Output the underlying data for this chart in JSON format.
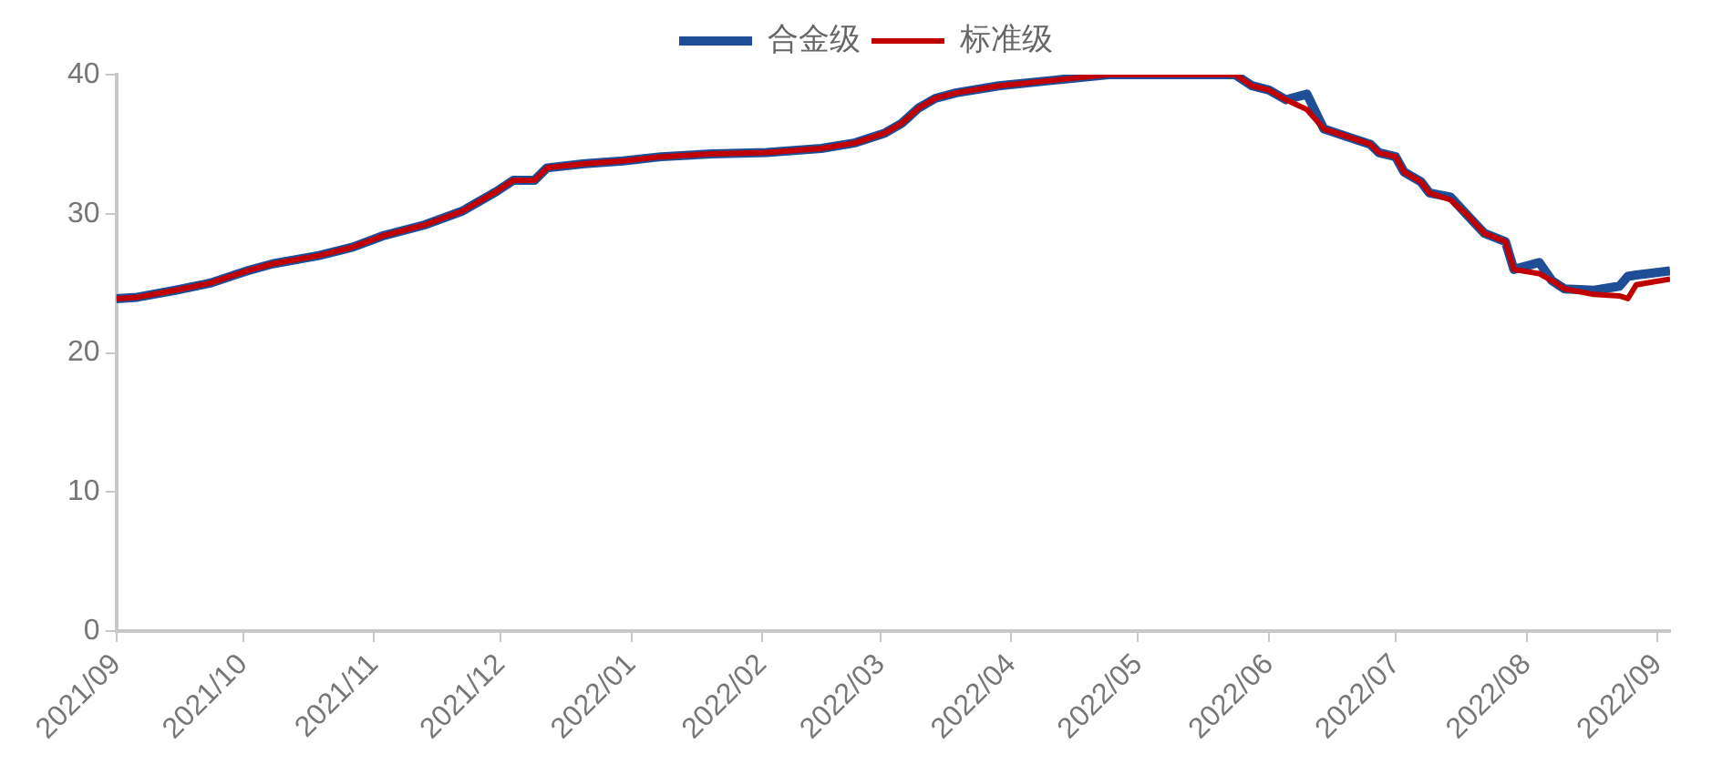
{
  "chart_data": {
    "type": "line",
    "x": [
      "2021-09-01",
      "2021-09-06",
      "2021-09-15",
      "2021-09-23",
      "2021-10-02",
      "2021-10-08",
      "2021-10-19",
      "2021-10-27",
      "2021-11-03",
      "2021-11-13",
      "2021-11-22",
      "2021-11-30",
      "2021-12-04",
      "2021-12-09",
      "2021-12-12",
      "2021-12-21",
      "2021-12-30",
      "2022-01-08",
      "2022-01-20",
      "2022-02-02",
      "2022-02-15",
      "2022-02-23",
      "2022-03-02",
      "2022-03-06",
      "2022-03-10",
      "2022-03-14",
      "2022-03-19",
      "2022-03-29",
      "2022-04-11",
      "2022-04-24",
      "2022-05-24",
      "2022-05-28",
      "2022-06-01",
      "2022-06-05",
      "2022-06-10",
      "2022-06-14",
      "2022-06-18",
      "2022-06-25",
      "2022-06-27",
      "2022-07-01",
      "2022-07-03",
      "2022-07-07",
      "2022-07-09",
      "2022-07-14",
      "2022-07-18",
      "2022-07-22",
      "2022-07-27",
      "2022-07-29",
      "2022-08-04",
      "2022-08-07",
      "2022-08-10",
      "2022-08-17",
      "2022-08-23",
      "2022-08-25",
      "2022-08-27",
      "2022-09-04"
    ],
    "series": [
      {
        "name": "合金级",
        "color": "#1f4e96",
        "values": [
          23.9,
          24.0,
          24.5,
          25.0,
          25.9,
          26.4,
          27.0,
          27.6,
          28.4,
          29.2,
          30.2,
          31.6,
          32.4,
          32.4,
          33.3,
          33.6,
          33.8,
          34.1,
          34.3,
          34.4,
          34.7,
          35.1,
          35.8,
          36.5,
          37.6,
          38.3,
          38.7,
          39.2,
          39.6,
          40.0,
          40.0,
          39.2,
          38.9,
          38.2,
          38.6,
          36.1,
          35.7,
          35.0,
          34.4,
          34.1,
          33.0,
          32.3,
          31.5,
          31.2,
          29.9,
          28.6,
          28.0,
          26.0,
          26.5,
          25.2,
          24.6,
          24.5,
          24.8,
          25.5,
          25.6,
          25.9
        ]
      },
      {
        "name": "标准级",
        "color": "#c00000",
        "values": [
          23.9,
          24.0,
          24.5,
          25.0,
          25.9,
          26.4,
          27.0,
          27.6,
          28.4,
          29.2,
          30.2,
          31.6,
          32.4,
          32.4,
          33.3,
          33.6,
          33.8,
          34.1,
          34.3,
          34.4,
          34.7,
          35.1,
          35.8,
          36.5,
          37.6,
          38.3,
          38.7,
          39.2,
          39.6,
          40.0,
          40.0,
          39.2,
          38.9,
          38.2,
          37.5,
          36.1,
          35.7,
          35.0,
          34.4,
          34.1,
          33.0,
          32.3,
          31.5,
          31.0,
          29.9,
          28.6,
          28.0,
          26.0,
          25.7,
          25.2,
          24.6,
          24.2,
          24.1,
          23.9,
          24.9,
          25.3
        ]
      }
    ],
    "xlim": [
      "2021-09-01",
      "2022-09-04"
    ],
    "xticks": [
      {
        "value": "2021-09-01",
        "label": "2021/09"
      },
      {
        "value": "2021-10-01",
        "label": "2021/10"
      },
      {
        "value": "2021-11-01",
        "label": "2021/11"
      },
      {
        "value": "2021-12-01",
        "label": "2021/12"
      },
      {
        "value": "2022-01-01",
        "label": "2022/01"
      },
      {
        "value": "2022-02-01",
        "label": "2022/02"
      },
      {
        "value": "2022-03-01",
        "label": "2022/03"
      },
      {
        "value": "2022-04-01",
        "label": "2022/04"
      },
      {
        "value": "2022-05-01",
        "label": "2022/05"
      },
      {
        "value": "2022-06-01",
        "label": "2022/06"
      },
      {
        "value": "2022-07-01",
        "label": "2022/07"
      },
      {
        "value": "2022-08-01",
        "label": "2022/08"
      },
      {
        "value": "2022-09-01",
        "label": "2022/09"
      }
    ],
    "ylim": [
      0,
      40
    ],
    "yticks": [
      0,
      10,
      20,
      30,
      40
    ],
    "grid": false,
    "legend": "top",
    "marker": "none",
    "line_style": "solid"
  }
}
